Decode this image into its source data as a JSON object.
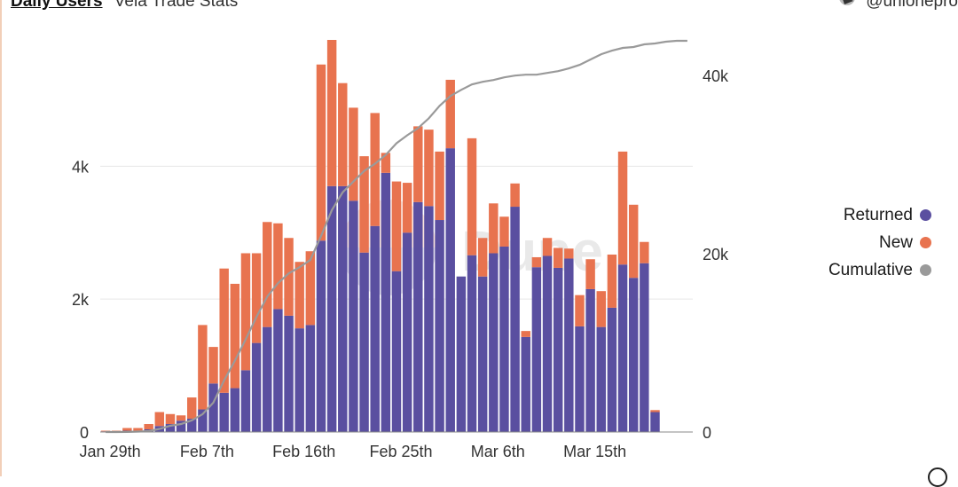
{
  "header": {
    "title": "Daily Users",
    "subtitle": "Vela Trade Stats"
  },
  "author": {
    "handle": "@unionepro"
  },
  "watermark": "Dune",
  "colors": {
    "returned": "#5a4fa0",
    "new": "#e8734f",
    "cumulative": "#9a9a9a"
  },
  "chart_data": {
    "type": "bar",
    "stacked": true,
    "x": [
      "Jan 29",
      "Jan 30",
      "Jan 31",
      "Feb 1",
      "Feb 2",
      "Feb 3",
      "Feb 4",
      "Feb 5",
      "Feb 6",
      "Feb 7",
      "Feb 8",
      "Feb 9",
      "Feb 10",
      "Feb 11",
      "Feb 12",
      "Feb 13",
      "Feb 14",
      "Feb 15",
      "Feb 16",
      "Feb 17",
      "Feb 18",
      "Feb 19",
      "Feb 20",
      "Feb 21",
      "Feb 22",
      "Feb 23",
      "Feb 24",
      "Feb 25",
      "Feb 26",
      "Feb 27",
      "Feb 28",
      "Mar 1",
      "Mar 2",
      "Mar 3",
      "Mar 4",
      "Mar 5",
      "Mar 6",
      "Mar 7",
      "Mar 8",
      "Mar 9",
      "Mar 10",
      "Mar 11",
      "Mar 12",
      "Mar 13",
      "Mar 14",
      "Mar 15",
      "Mar 16",
      "Mar 17",
      "Mar 18",
      "Mar 19",
      "Mar 20",
      "Mar 21",
      "Mar 22",
      "Mar 23",
      "Mar 24"
    ],
    "x_tick_labels": [
      "Jan 29th",
      "Feb 7th",
      "Feb 16th",
      "Feb 25th",
      "Mar 6th",
      "Mar 15th"
    ],
    "x_tick_indices": [
      0,
      9,
      18,
      27,
      36,
      45
    ],
    "series": [
      {
        "name": "Returned",
        "axis": "left",
        "values": [
          10,
          10,
          20,
          20,
          40,
          90,
          120,
          170,
          200,
          340,
          730,
          590,
          660,
          930,
          1340,
          1580,
          1850,
          1750,
          1560,
          1610,
          2880,
          3700,
          3700,
          3480,
          2700,
          3100,
          3900,
          2420,
          3000,
          3460,
          3400,
          3190,
          4270,
          2340,
          2660,
          2340,
          2690,
          2790,
          3390,
          1430,
          2480,
          2650,
          2470,
          2610,
          1590,
          2150,
          1580,
          1870,
          2520,
          2320,
          2540,
          300,
          0,
          0,
          0
        ]
      },
      {
        "name": "New",
        "axis": "left",
        "values": [
          10,
          10,
          40,
          40,
          80,
          210,
          150,
          80,
          320,
          1270,
          550,
          1870,
          1570,
          1760,
          1350,
          1580,
          1290,
          1170,
          1000,
          1110,
          2650,
          2200,
          1550,
          1400,
          1450,
          1700,
          300,
          1350,
          750,
          1140,
          1150,
          1030,
          1030,
          0,
          1760,
          580,
          750,
          450,
          350,
          90,
          150,
          270,
          300,
          150,
          470,
          450,
          540,
          800,
          1700,
          1100,
          320,
          30,
          0,
          0,
          0
        ]
      },
      {
        "name": "Cumulative",
        "axis": "right",
        "type": "line",
        "values": [
          0,
          0,
          10,
          50,
          100,
          350,
          700,
          900,
          1300,
          2000,
          3300,
          5800,
          8000,
          10400,
          12900,
          15200,
          16700,
          17800,
          18500,
          19300,
          22000,
          24900,
          26900,
          28100,
          29300,
          30100,
          31100,
          32400,
          33300,
          34100,
          35200,
          36600,
          37700,
          38400,
          39000,
          39300,
          39500,
          39800,
          40000,
          40100,
          40100,
          40300,
          40500,
          40800,
          41200,
          41800,
          42400,
          42800,
          43100,
          43200,
          43500,
          43600,
          43800,
          43900,
          43900
        ]
      }
    ],
    "y_left": {
      "min": 0,
      "max": 5900,
      "ticks": [
        0,
        2000,
        4000
      ],
      "tick_labels": [
        "0",
        "2k",
        "4k"
      ]
    },
    "y_right": {
      "min": 0,
      "max": 44000,
      "ticks": [
        0,
        20000,
        40000
      ],
      "tick_labels": [
        "0",
        "20k",
        "40k"
      ]
    },
    "grid": true,
    "legend_position": "right"
  }
}
